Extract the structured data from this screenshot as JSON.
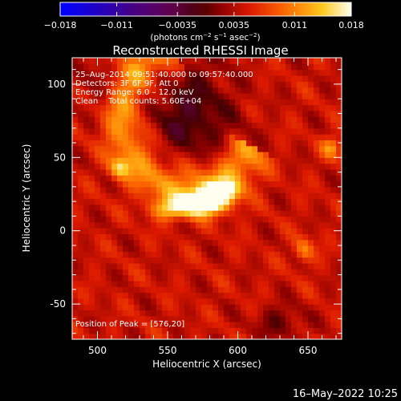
{
  "chart_data": {
    "type": "heatmap",
    "title": "Reconstructed RHESSI Image",
    "xlabel": "Heliocentric X (arcsec)",
    "ylabel": "Heliocentric Y (arcsec)",
    "xlim": [
      482,
      674
    ],
    "ylim": [
      -74,
      118
    ],
    "x_ticks": [
      500,
      550,
      600,
      650
    ],
    "y_ticks": [
      -50,
      0,
      50,
      100
    ],
    "colorbar": {
      "min": -0.018,
      "max": 0.018,
      "tick_values": [
        -0.018,
        -0.011,
        -0.0035,
        0.0035,
        0.011,
        0.018
      ],
      "tick_labels": [
        "−0.018",
        "−0.011",
        "−0.0035",
        "0.0035",
        "0.011",
        "0.018"
      ],
      "label_prefix": "(photons cm",
      "label_exp1": "−2",
      "label_mid": " s",
      "label_exp2": "−1",
      "label_suffix": " asec",
      "label_exp3": "−2",
      "label_end": ")"
    },
    "annotations": [
      "25–Aug–2014 09:51:40.000 to 09:57:40.000",
      "Detectors: 3F 6F 9F, Att 0",
      "Energy Range: 6.0 – 12.0 keV",
      "Clean    Total counts: 5.60E+04"
    ],
    "peak_label": "Position of Peak = [576,20]",
    "peak": [
      576,
      20
    ],
    "peak_value": 0.018,
    "features": [
      {
        "type": "arc",
        "center": [
          566,
          78
        ],
        "radius": 48,
        "start_deg": 100,
        "end_deg": 335,
        "value": 0.0075,
        "width": 11
      },
      {
        "type": "blob",
        "xy": [
          576,
          20
        ],
        "value": 0.0185,
        "sx": 11,
        "sy": 6
      },
      {
        "type": "blob",
        "xy": [
          590,
          28
        ],
        "value": 0.012,
        "sx": 8,
        "sy": 5
      },
      {
        "type": "blob",
        "xy": [
          552,
          15
        ],
        "value": 0.0085,
        "sx": 10,
        "sy": 5
      },
      {
        "type": "blob",
        "xy": [
          516,
          43
        ],
        "value": 0.008,
        "sx": 5,
        "sy": 5
      },
      {
        "type": "blob",
        "xy": [
          667,
          57
        ],
        "value": 0.007,
        "sx": 5,
        "sy": 5
      },
      {
        "type": "blob",
        "xy": [
          647,
          -13
        ],
        "value": 0.0065,
        "sx": 5,
        "sy": 6
      },
      {
        "type": "hole",
        "xy": [
          566,
          80
        ],
        "value": -0.006,
        "sx": 22,
        "sy": 24
      },
      {
        "type": "hole",
        "xy": [
          630,
          -62
        ],
        "value": -0.004,
        "sx": 12,
        "sy": 8
      },
      {
        "type": "hole",
        "xy": [
          500,
          100
        ],
        "value": -0.003,
        "sx": 10,
        "sy": 12
      }
    ],
    "background_level": 0.0045
  },
  "footer": {
    "timestamp": "16–May–2022 10:25"
  }
}
